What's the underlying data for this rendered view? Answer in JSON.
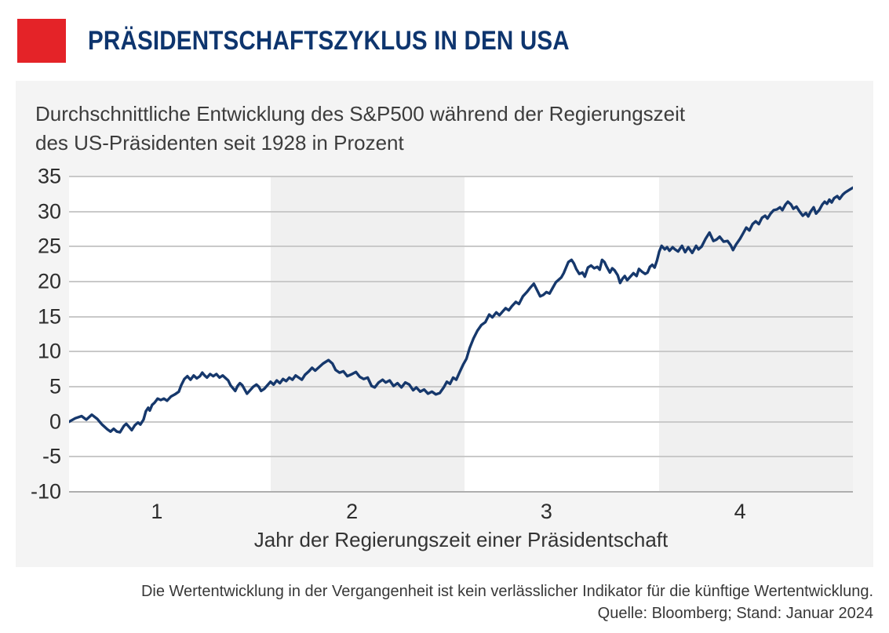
{
  "header": {
    "title": "PRÄSIDENTSCHAFTSZYKLUS IN DEN USA"
  },
  "panel": {
    "title_line1": "Durchschnittliche Entwicklung des S&P500 während der Regierungszeit",
    "title_line2": "des US-Präsidenten seit 1928 in Prozent"
  },
  "footer": {
    "disclaimer": "Die Wertentwicklung in der Vergangenheit ist kein verlässlicher Indikator für die künftige Wertentwicklung.",
    "source": "Quelle: Bloomberg; Stand: Januar 2024"
  },
  "colors": {
    "accent_red": "#e42328",
    "title_navy": "#0e356e",
    "line_navy": "#16386c",
    "panel_gray": "#f4f4f4",
    "band_gray": "#f0f0f0",
    "gridline_gray": "#c9c9c9",
    "axis_line_gray": "#aeaeae",
    "text_dark": "#3c3c3c"
  },
  "chart_data": {
    "type": "line",
    "title": "Durchschnittliche Entwicklung des S&P500 während der Regierungszeit des US-Präsidenten seit 1928 in Prozent",
    "xlabel": "Jahr der Regierungszeit einer Präsidentschaft",
    "ylabel": "Prozent",
    "ylim": [
      -10,
      35
    ],
    "yticks": [
      35,
      30,
      25,
      20,
      15,
      10,
      5,
      0,
      -5,
      -10
    ],
    "grid": "horizontal",
    "legend": "none",
    "x_unit": "fraction of plot width (term of 4 years, ticks mark year of presidency)",
    "xticks": [
      {
        "label": "1",
        "f": 0.112
      },
      {
        "label": "2",
        "f": 0.361
      },
      {
        "label": "3",
        "f": 0.609
      },
      {
        "label": "4",
        "f": 0.856
      }
    ],
    "shaded_bands_f": [
      [
        0.257,
        0.505
      ],
      [
        0.753,
        1.0
      ]
    ],
    "series": [
      {
        "name": "S&P500 Durchschnitt seit 1928 (%)",
        "color": "#16386c",
        "points": [
          [
            0.0,
            0.0
          ],
          [
            0.008,
            0.5
          ],
          [
            0.016,
            0.8
          ],
          [
            0.022,
            0.3
          ],
          [
            0.029,
            1.0
          ],
          [
            0.036,
            0.4
          ],
          [
            0.042,
            -0.4
          ],
          [
            0.049,
            -1.1
          ],
          [
            0.053,
            -1.4
          ],
          [
            0.057,
            -1.0
          ],
          [
            0.061,
            -1.4
          ],
          [
            0.065,
            -1.5
          ],
          [
            0.07,
            -0.6
          ],
          [
            0.073,
            -0.3
          ],
          [
            0.077,
            -0.8
          ],
          [
            0.08,
            -1.2
          ],
          [
            0.084,
            -0.5
          ],
          [
            0.088,
            -0.1
          ],
          [
            0.091,
            -0.4
          ],
          [
            0.095,
            0.3
          ],
          [
            0.098,
            1.5
          ],
          [
            0.101,
            2.0
          ],
          [
            0.103,
            1.6
          ],
          [
            0.106,
            2.4
          ],
          [
            0.109,
            2.7
          ],
          [
            0.113,
            3.3
          ],
          [
            0.117,
            3.1
          ],
          [
            0.121,
            3.3
          ],
          [
            0.125,
            3.0
          ],
          [
            0.13,
            3.6
          ],
          [
            0.135,
            3.9
          ],
          [
            0.14,
            4.3
          ],
          [
            0.143,
            5.2
          ],
          [
            0.147,
            6.1
          ],
          [
            0.151,
            6.5
          ],
          [
            0.155,
            6.0
          ],
          [
            0.159,
            6.6
          ],
          [
            0.163,
            6.2
          ],
          [
            0.167,
            6.5
          ],
          [
            0.17,
            7.0
          ],
          [
            0.173,
            6.6
          ],
          [
            0.176,
            6.3
          ],
          [
            0.18,
            6.8
          ],
          [
            0.184,
            6.5
          ],
          [
            0.188,
            6.8
          ],
          [
            0.192,
            6.3
          ],
          [
            0.196,
            6.6
          ],
          [
            0.2,
            6.2
          ],
          [
            0.203,
            5.9
          ],
          [
            0.206,
            5.2
          ],
          [
            0.209,
            4.8
          ],
          [
            0.212,
            4.4
          ],
          [
            0.215,
            5.1
          ],
          [
            0.218,
            5.5
          ],
          [
            0.221,
            5.2
          ],
          [
            0.224,
            4.6
          ],
          [
            0.227,
            4.0
          ],
          [
            0.231,
            4.5
          ],
          [
            0.235,
            5.0
          ],
          [
            0.239,
            5.3
          ],
          [
            0.242,
            5.0
          ],
          [
            0.245,
            4.4
          ],
          [
            0.249,
            4.7
          ],
          [
            0.253,
            5.2
          ],
          [
            0.257,
            5.7
          ],
          [
            0.261,
            5.3
          ],
          [
            0.265,
            5.9
          ],
          [
            0.269,
            5.5
          ],
          [
            0.273,
            6.1
          ],
          [
            0.277,
            5.8
          ],
          [
            0.281,
            6.3
          ],
          [
            0.285,
            6.0
          ],
          [
            0.289,
            6.6
          ],
          [
            0.293,
            6.3
          ],
          [
            0.297,
            6.0
          ],
          [
            0.301,
            6.7
          ],
          [
            0.306,
            7.2
          ],
          [
            0.31,
            7.7
          ],
          [
            0.314,
            7.3
          ],
          [
            0.319,
            7.8
          ],
          [
            0.324,
            8.3
          ],
          [
            0.331,
            8.8
          ],
          [
            0.336,
            8.3
          ],
          [
            0.34,
            7.4
          ],
          [
            0.345,
            7.0
          ],
          [
            0.35,
            7.2
          ],
          [
            0.355,
            6.5
          ],
          [
            0.361,
            6.8
          ],
          [
            0.366,
            7.1
          ],
          [
            0.371,
            6.4
          ],
          [
            0.376,
            6.1
          ],
          [
            0.381,
            6.3
          ],
          [
            0.386,
            5.1
          ],
          [
            0.39,
            4.9
          ],
          [
            0.395,
            5.6
          ],
          [
            0.4,
            6.0
          ],
          [
            0.404,
            5.6
          ],
          [
            0.409,
            5.9
          ],
          [
            0.414,
            5.1
          ],
          [
            0.419,
            5.5
          ],
          [
            0.424,
            4.9
          ],
          [
            0.429,
            5.6
          ],
          [
            0.434,
            5.3
          ],
          [
            0.439,
            4.5
          ],
          [
            0.443,
            4.9
          ],
          [
            0.448,
            4.3
          ],
          [
            0.453,
            4.6
          ],
          [
            0.458,
            4.0
          ],
          [
            0.463,
            4.3
          ],
          [
            0.468,
            3.9
          ],
          [
            0.473,
            4.1
          ],
          [
            0.478,
            4.9
          ],
          [
            0.482,
            5.7
          ],
          [
            0.486,
            5.4
          ],
          [
            0.49,
            6.3
          ],
          [
            0.494,
            6.0
          ],
          [
            0.498,
            7.0
          ],
          [
            0.503,
            8.2
          ],
          [
            0.507,
            9.0
          ],
          [
            0.511,
            10.5
          ],
          [
            0.516,
            11.9
          ],
          [
            0.521,
            13.0
          ],
          [
            0.526,
            13.8
          ],
          [
            0.531,
            14.2
          ],
          [
            0.536,
            15.3
          ],
          [
            0.54,
            14.9
          ],
          [
            0.545,
            15.6
          ],
          [
            0.549,
            15.2
          ],
          [
            0.553,
            15.7
          ],
          [
            0.557,
            16.2
          ],
          [
            0.561,
            15.9
          ],
          [
            0.565,
            16.5
          ],
          [
            0.57,
            17.1
          ],
          [
            0.574,
            16.8
          ],
          [
            0.579,
            17.9
          ],
          [
            0.584,
            18.5
          ],
          [
            0.589,
            19.2
          ],
          [
            0.593,
            19.7
          ],
          [
            0.597,
            18.8
          ],
          [
            0.601,
            17.9
          ],
          [
            0.605,
            18.1
          ],
          [
            0.609,
            18.5
          ],
          [
            0.613,
            18.3
          ],
          [
            0.617,
            19.1
          ],
          [
            0.621,
            19.9
          ],
          [
            0.625,
            20.3
          ],
          [
            0.628,
            20.6
          ],
          [
            0.631,
            21.2
          ],
          [
            0.634,
            22.0
          ],
          [
            0.637,
            22.8
          ],
          [
            0.641,
            23.1
          ],
          [
            0.644,
            22.6
          ],
          [
            0.647,
            21.8
          ],
          [
            0.651,
            21.1
          ],
          [
            0.655,
            21.3
          ],
          [
            0.658,
            20.7
          ],
          [
            0.662,
            22.0
          ],
          [
            0.666,
            22.3
          ],
          [
            0.67,
            21.9
          ],
          [
            0.674,
            22.1
          ],
          [
            0.677,
            21.7
          ],
          [
            0.68,
            23.1
          ],
          [
            0.683,
            22.8
          ],
          [
            0.686,
            22.1
          ],
          [
            0.69,
            21.3
          ],
          [
            0.693,
            21.9
          ],
          [
            0.696,
            21.6
          ],
          [
            0.7,
            20.9
          ],
          [
            0.703,
            19.8
          ],
          [
            0.706,
            20.4
          ],
          [
            0.709,
            20.8
          ],
          [
            0.712,
            20.2
          ],
          [
            0.716,
            20.7
          ],
          [
            0.72,
            21.2
          ],
          [
            0.724,
            20.8
          ],
          [
            0.727,
            21.8
          ],
          [
            0.731,
            21.4
          ],
          [
            0.735,
            21.1
          ],
          [
            0.738,
            21.3
          ],
          [
            0.741,
            22.1
          ],
          [
            0.744,
            22.4
          ],
          [
            0.747,
            22.0
          ],
          [
            0.75,
            23.0
          ],
          [
            0.753,
            24.3
          ],
          [
            0.756,
            25.1
          ],
          [
            0.76,
            24.6
          ],
          [
            0.763,
            24.9
          ],
          [
            0.766,
            24.4
          ],
          [
            0.77,
            24.9
          ],
          [
            0.773,
            24.6
          ],
          [
            0.777,
            24.3
          ],
          [
            0.782,
            25.1
          ],
          [
            0.786,
            24.2
          ],
          [
            0.79,
            24.9
          ],
          [
            0.795,
            24.1
          ],
          [
            0.8,
            25.1
          ],
          [
            0.803,
            24.6
          ],
          [
            0.807,
            25.0
          ],
          [
            0.812,
            26.1
          ],
          [
            0.817,
            27.0
          ],
          [
            0.822,
            25.8
          ],
          [
            0.826,
            26.0
          ],
          [
            0.83,
            26.4
          ],
          [
            0.835,
            25.7
          ],
          [
            0.84,
            25.8
          ],
          [
            0.844,
            25.2
          ],
          [
            0.847,
            24.5
          ],
          [
            0.851,
            25.3
          ],
          [
            0.856,
            26.1
          ],
          [
            0.86,
            26.9
          ],
          [
            0.864,
            27.7
          ],
          [
            0.868,
            27.3
          ],
          [
            0.872,
            28.2
          ],
          [
            0.876,
            28.6
          ],
          [
            0.88,
            28.2
          ],
          [
            0.884,
            29.1
          ],
          [
            0.888,
            29.4
          ],
          [
            0.891,
            29.0
          ],
          [
            0.895,
            29.7
          ],
          [
            0.899,
            30.2
          ],
          [
            0.903,
            30.3
          ],
          [
            0.907,
            30.6
          ],
          [
            0.91,
            30.2
          ],
          [
            0.914,
            31.0
          ],
          [
            0.917,
            31.4
          ],
          [
            0.921,
            31.0
          ],
          [
            0.924,
            30.4
          ],
          [
            0.928,
            30.7
          ],
          [
            0.932,
            30.0
          ],
          [
            0.936,
            29.4
          ],
          [
            0.94,
            29.8
          ],
          [
            0.943,
            29.3
          ],
          [
            0.946,
            30.0
          ],
          [
            0.95,
            30.6
          ],
          [
            0.953,
            29.7
          ],
          [
            0.957,
            30.2
          ],
          [
            0.961,
            31.0
          ],
          [
            0.964,
            31.4
          ],
          [
            0.967,
            31.1
          ],
          [
            0.97,
            31.7
          ],
          [
            0.973,
            31.3
          ],
          [
            0.976,
            31.9
          ],
          [
            0.98,
            32.2
          ],
          [
            0.983,
            31.8
          ],
          [
            0.987,
            32.4
          ],
          [
            0.99,
            32.7
          ],
          [
            0.994,
            33.0
          ],
          [
            0.997,
            33.2
          ],
          [
            1.0,
            33.4
          ]
        ]
      }
    ]
  }
}
